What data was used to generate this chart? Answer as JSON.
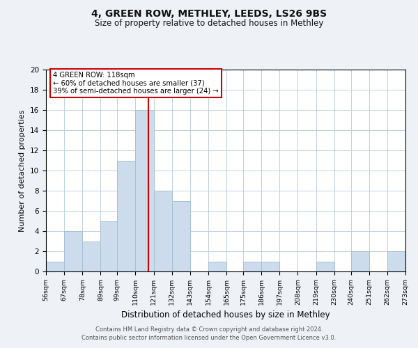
{
  "title": "4, GREEN ROW, METHLEY, LEEDS, LS26 9BS",
  "subtitle": "Size of property relative to detached houses in Methley",
  "xlabel": "Distribution of detached houses by size in Methley",
  "ylabel": "Number of detached properties",
  "bar_color": "#ccdcec",
  "bar_edgecolor": "#a8c0d4",
  "bins": [
    56,
    67,
    78,
    89,
    99,
    110,
    121,
    132,
    143,
    154,
    165,
    175,
    186,
    197,
    208,
    219,
    230,
    240,
    251,
    262,
    273
  ],
  "counts": [
    1,
    4,
    3,
    5,
    11,
    16,
    8,
    7,
    0,
    1,
    0,
    1,
    1,
    0,
    0,
    1,
    0,
    2,
    0,
    2
  ],
  "tick_labels": [
    "56sqm",
    "67sqm",
    "78sqm",
    "89sqm",
    "99sqm",
    "110sqm",
    "121sqm",
    "132sqm",
    "143sqm",
    "154sqm",
    "165sqm",
    "175sqm",
    "186sqm",
    "197sqm",
    "208sqm",
    "219sqm",
    "230sqm",
    "240sqm",
    "251sqm",
    "262sqm",
    "273sqm"
  ],
  "property_line_x": 118,
  "property_line_color": "#cc0000",
  "annotation_title": "4 GREEN ROW: 118sqm",
  "annotation_line1": "← 60% of detached houses are smaller (37)",
  "annotation_line2": "39% of semi-detached houses are larger (24) →",
  "ylim": [
    0,
    20
  ],
  "yticks": [
    0,
    2,
    4,
    6,
    8,
    10,
    12,
    14,
    16,
    18,
    20
  ],
  "footer1": "Contains HM Land Registry data © Crown copyright and database right 2024.",
  "footer2": "Contains public sector information licensed under the Open Government Licence v3.0.",
  "bg_color": "#eef2f7",
  "plot_bg_color": "#ffffff",
  "grid_color": "#c0d0e0"
}
